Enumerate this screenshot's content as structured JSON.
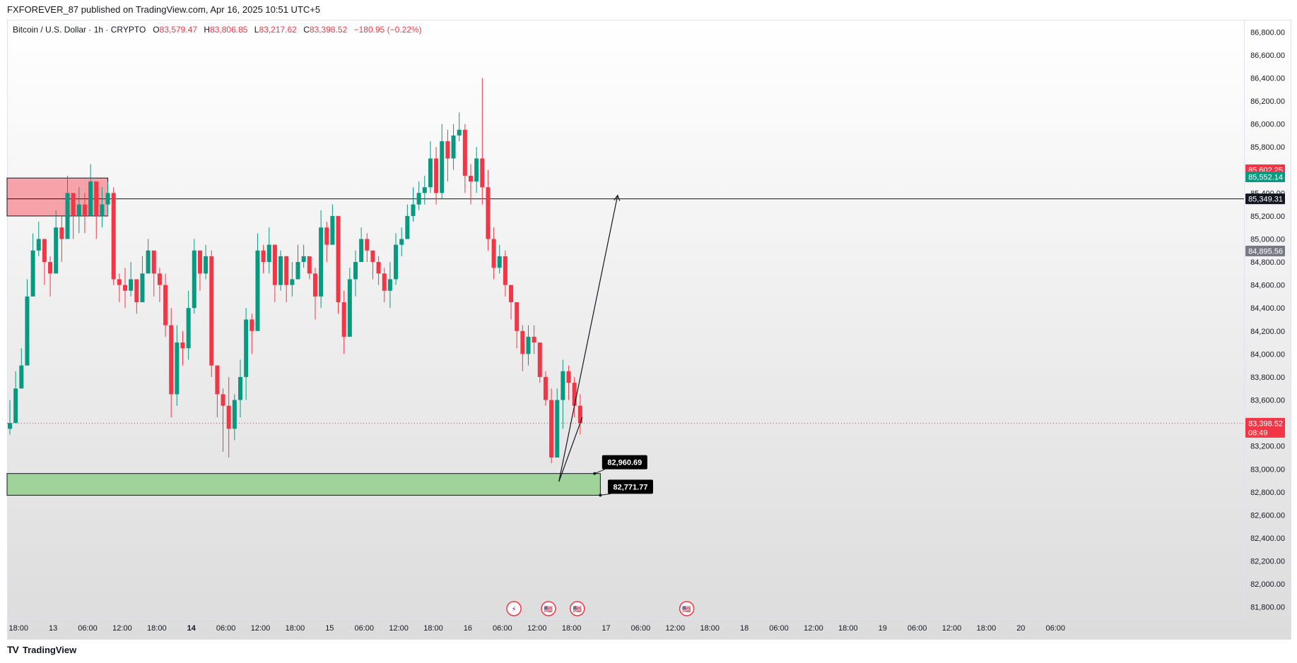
{
  "publisher": "FXFOREVER_87 published on TradingView.com, Apr 16, 2025 10:51 UTC+5",
  "legend": {
    "symbol": "Bitcoin / U.S. Dollar · 1h · CRYPTO",
    "o_label": "O",
    "o_value": "83,579.47",
    "h_label": "H",
    "h_value": "83,806.85",
    "l_label": "L",
    "l_value": "83,217.62",
    "c_label": "C",
    "c_value": "83,398.52",
    "change": "−180.95 (−0.22%)"
  },
  "footer": {
    "logo": "TV",
    "brand": "TradingView"
  },
  "colors": {
    "up": "#089981",
    "down": "#f23645",
    "supply_zone": "#f7a1a8",
    "demand_zone": "#9fd39a"
  },
  "chart_data": {
    "type": "candlestick",
    "ylim": [
      81700,
      86900
    ],
    "y_ticks": [
      "86,800.00",
      "86,600.00",
      "86,400.00",
      "86,200.00",
      "86,000.00",
      "85,800.00",
      "85,600.00",
      "85,400.00",
      "85,200.00",
      "85,000.00",
      "84,800.00",
      "84,600.00",
      "84,400.00",
      "84,200.00",
      "84,000.00",
      "83,800.00",
      "83,600.00",
      "83,400.00",
      "83,200.00",
      "83,000.00",
      "82,800.00",
      "82,600.00",
      "82,400.00",
      "82,200.00",
      "82,000.00",
      "81,800.00"
    ],
    "y_tick_values": [
      86800,
      86600,
      86400,
      86200,
      86000,
      85800,
      85600,
      85400,
      85200,
      85000,
      84800,
      84600,
      84400,
      84200,
      84000,
      83800,
      83600,
      83400,
      83200,
      83000,
      82800,
      82600,
      82400,
      82200,
      82000,
      81800
    ],
    "x_ticks": [
      {
        "label": "18:00",
        "i": 1.5,
        "bold": false
      },
      {
        "label": "13",
        "i": 7.5,
        "bold": false
      },
      {
        "label": "06:00",
        "i": 13.5,
        "bold": false
      },
      {
        "label": "12:00",
        "i": 19.5,
        "bold": false
      },
      {
        "label": "18:00",
        "i": 25.5,
        "bold": false
      },
      {
        "label": "14",
        "i": 31.5,
        "bold": true
      },
      {
        "label": "06:00",
        "i": 37.5,
        "bold": false
      },
      {
        "label": "12:00",
        "i": 43.5,
        "bold": false
      },
      {
        "label": "18:00",
        "i": 49.5,
        "bold": false
      },
      {
        "label": "15",
        "i": 55.5,
        "bold": false
      },
      {
        "label": "06:00",
        "i": 61.5,
        "bold": false
      },
      {
        "label": "12:00",
        "i": 67.5,
        "bold": false
      },
      {
        "label": "18:00",
        "i": 73.5,
        "bold": false
      },
      {
        "label": "16",
        "i": 79.5,
        "bold": false
      },
      {
        "label": "06:00",
        "i": 85.5,
        "bold": false
      },
      {
        "label": "12:00",
        "i": 91.5,
        "bold": false
      },
      {
        "label": "18:00",
        "i": 97.5,
        "bold": false
      },
      {
        "label": "17",
        "i": 103.5,
        "bold": false
      },
      {
        "label": "06:00",
        "i": 109.5,
        "bold": false
      },
      {
        "label": "12:00",
        "i": 115.5,
        "bold": false
      },
      {
        "label": "18:00",
        "i": 121.5,
        "bold": false
      },
      {
        "label": "18",
        "i": 127.5,
        "bold": false
      },
      {
        "label": "06:00",
        "i": 133.5,
        "bold": false
      },
      {
        "label": "12:00",
        "i": 139.5,
        "bold": false
      },
      {
        "label": "18:00",
        "i": 145.5,
        "bold": false
      },
      {
        "label": "19",
        "i": 151.5,
        "bold": false
      },
      {
        "label": "06:00",
        "i": 157.5,
        "bold": false
      },
      {
        "label": "12:00",
        "i": 163.5,
        "bold": false
      },
      {
        "label": "18:00",
        "i": 169.5,
        "bold": false
      },
      {
        "label": "20",
        "i": 175.5,
        "bold": false
      },
      {
        "label": "06:00",
        "i": 181.5,
        "bold": false
      }
    ],
    "closes": [
      83400,
      83700,
      83900,
      84500,
      84900,
      85000,
      84800,
      84700,
      85100,
      85000,
      85400,
      85200,
      85300,
      85200,
      85500,
      85200,
      85300,
      85400,
      84650,
      84600,
      84550,
      84650,
      84450,
      84700,
      84900,
      84700,
      84600,
      84250,
      83650,
      84100,
      84050,
      84400,
      84900,
      84700,
      84850,
      83900,
      83650,
      83550,
      83350,
      83600,
      83800,
      84300,
      84200,
      84900,
      84800,
      84950,
      84600,
      84850,
      84600,
      84650,
      84800,
      84850,
      84700,
      84500,
      85100,
      84950,
      85200,
      84450,
      84150,
      84650,
      84800,
      85000,
      84900,
      84800,
      84700,
      84550,
      84650,
      84950,
      85000,
      85200,
      85300,
      85400,
      85450,
      85700,
      85400,
      85850,
      85700,
      85900,
      85950,
      85550,
      85500,
      85700,
      85450,
      85000,
      84750,
      84850,
      84600,
      84450,
      84200,
      84000,
      84150,
      84100,
      83800,
      83600,
      83100,
      83600,
      83850,
      83750,
      83550,
      83400
    ],
    "highs": [
      83600,
      83850,
      84050,
      84650,
      85050,
      85150,
      84950,
      84850,
      85250,
      85200,
      85550,
      85350,
      85450,
      85400,
      85650,
      85350,
      85450,
      85500,
      85450,
      84700,
      84750,
      84800,
      84650,
      84850,
      85000,
      84850,
      84750,
      84700,
      84400,
      84250,
      84200,
      84550,
      85000,
      84850,
      84950,
      84900,
      83900,
      83700,
      83800,
      83650,
      83950,
      84400,
      84350,
      85050,
      84950,
      85100,
      84800,
      84900,
      84750,
      84800,
      84950,
      84950,
      84850,
      84750,
      85250,
      85150,
      85300,
      85200,
      84550,
      84750,
      84900,
      85100,
      85050,
      84900,
      84850,
      84750,
      84800,
      85050,
      85100,
      85300,
      85450,
      85500,
      85550,
      85850,
      85800,
      86000,
      85950,
      86000,
      86100,
      86000,
      85650,
      85800,
      86400,
      85600,
      85100,
      84950,
      84900,
      84600,
      84400,
      84250,
      84250,
      84250,
      84000,
      83850,
      83700,
      83700,
      83950,
      83900,
      83800,
      83650
    ],
    "lows": [
      83300,
      83550,
      83750,
      84300,
      84750,
      84850,
      84600,
      84500,
      84950,
      84800,
      85200,
      85000,
      85050,
      85050,
      85250,
      85000,
      85100,
      85200,
      84600,
      84450,
      84400,
      84500,
      84350,
      84550,
      84750,
      84500,
      84450,
      84150,
      83450,
      83550,
      83900,
      83950,
      84350,
      84550,
      84650,
      83800,
      83450,
      83150,
      83100,
      83250,
      83450,
      83600,
      84000,
      84200,
      84700,
      84700,
      84450,
      84550,
      84450,
      84500,
      84700,
      84750,
      84650,
      84300,
      84400,
      84800,
      85000,
      84350,
      84000,
      84150,
      84500,
      84850,
      84800,
      84650,
      84600,
      84450,
      84400,
      84600,
      84850,
      85000,
      85150,
      85250,
      85300,
      85400,
      85300,
      85350,
      85500,
      85600,
      85850,
      85400,
      85300,
      85400,
      85300,
      84900,
      84650,
      84700,
      84500,
      84300,
      84050,
      83850,
      83900,
      84000,
      83750,
      83550,
      83050,
      83100,
      83350,
      83600,
      83450,
      83300
    ]
  },
  "annotations": {
    "supply_zone": {
      "y_top": 85530,
      "y_bottom": 85200
    },
    "demand_zone": {
      "y_top": 82960.69,
      "y_bottom": 82771.77
    },
    "horizontal_line": 85349.31,
    "current_price_line": 83398.52,
    "projection": {
      "start": 83450,
      "low": 82890,
      "target": 85380
    },
    "callouts": [
      {
        "label": "82,960.69",
        "value": 82960.69
      },
      {
        "label": "82,771.77",
        "value": 82771.77
      }
    ],
    "price_tags": [
      {
        "label": "85,602.25",
        "value": 85602.25,
        "bg": "#f23645",
        "fg": "#ffffff"
      },
      {
        "label": "85,552.14",
        "value": 85552.14,
        "bg": "#089981",
        "fg": "#ffffff"
      },
      {
        "label": "85,349.31",
        "value": 85349.31,
        "bg": "#131722",
        "fg": "#ffffff"
      },
      {
        "label": "84,895.56",
        "value": 84895.56,
        "bg": "#787b86",
        "fg": "#ffffff"
      },
      {
        "label": "83,398.52",
        "value": 83398.52,
        "bg": "#f23645",
        "fg": "#ffffff",
        "sub": "08:49"
      }
    ],
    "event_icons": [
      {
        "name": "flash-event-icon",
        "i": 87.5,
        "glyph": "⚡"
      },
      {
        "name": "us-flag-event-icon",
        "i": 93.5,
        "glyph": "🇺🇸"
      },
      {
        "name": "us-flag-event-icon",
        "i": 98.5,
        "glyph": "🇺🇸"
      },
      {
        "name": "us-flag-event-icon",
        "i": 117.5,
        "glyph": "🇺🇸"
      }
    ]
  }
}
